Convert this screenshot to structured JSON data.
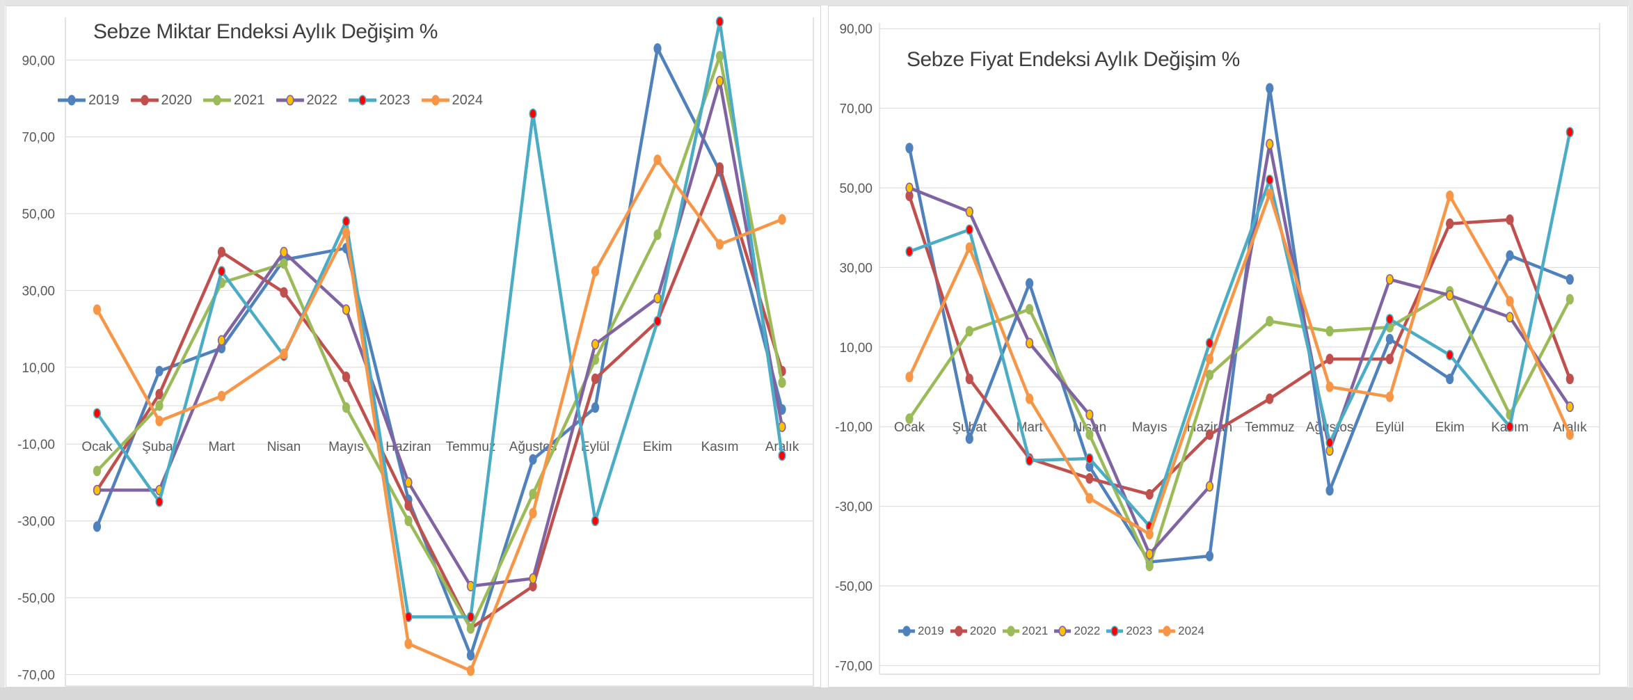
{
  "colors": {
    "gridline": "#d9d9d9",
    "axis_text": "#595959",
    "title_text": "#3f3f3f",
    "panel_border": "#d9d9d9",
    "page_edge": "#d8d8d8"
  },
  "chart_data": [
    {
      "type": "line",
      "title": "Sebze Miktar Endeksi Aylık Değişim %",
      "legend_position": "top-left",
      "grid": true,
      "ylim": [
        -70,
        90
      ],
      "y_tick_values": [
        90,
        70,
        50,
        30,
        10,
        -10,
        -30,
        -50,
        -70
      ],
      "y_tick_labels": [
        "90,00",
        "70,00",
        "50,00",
        "30,00",
        "10,00",
        "-10,00",
        "-30,00",
        "-50,00",
        "-70,00"
      ],
      "categories": [
        "Ocak",
        "Şubat",
        "Mart",
        "Nisan",
        "Mayıs",
        "Haziran",
        "Temmuz",
        "Ağustos",
        "Eylül",
        "Ekim",
        "Kasım",
        "Aralık"
      ],
      "series": [
        {
          "name": "2019",
          "color": "#4F81BD",
          "marker_fill": "#4F81BD",
          "marker_stroke": "#4F81BD",
          "values": [
            -31.5,
            9,
            15,
            38,
            41,
            -24.5,
            -65,
            -14,
            -0.5,
            93,
            61,
            -1
          ]
        },
        {
          "name": "2020",
          "color": "#C0504D",
          "marker_fill": "#C0504D",
          "marker_stroke": "#C0504D",
          "values": [
            -22,
            3,
            40,
            29.5,
            7.5,
            -26,
            -58,
            -47,
            7,
            22,
            62,
            9
          ]
        },
        {
          "name": "2021",
          "color": "#9BBB59",
          "marker_fill": "#9BBB59",
          "marker_stroke": "#9BBB59",
          "values": [
            -17,
            0,
            32,
            37,
            -0.5,
            -30,
            -58,
            -23,
            12,
            44.5,
            91,
            6
          ]
        },
        {
          "name": "2022",
          "color": "#8064A2",
          "marker_fill": "#FFC000",
          "marker_stroke": "#8064A2",
          "values": [
            -22,
            -22,
            17,
            40,
            25,
            -20,
            -47,
            -45,
            16,
            28,
            84.5,
            -5.5
          ]
        },
        {
          "name": "2023",
          "color": "#4BACC6",
          "marker_fill": "#FF0000",
          "marker_stroke": "#4BACC6",
          "values": [
            -2,
            -25,
            35,
            13,
            48,
            -55,
            -55,
            76,
            -30,
            22,
            100,
            -13
          ]
        },
        {
          "name": "2024",
          "color": "#F79646",
          "marker_fill": "#F79646",
          "marker_stroke": "#F79646",
          "values": [
            25,
            -4,
            2.5,
            13.5,
            45,
            -62,
            -69,
            -28,
            35,
            64,
            42,
            48.5
          ]
        }
      ]
    },
    {
      "type": "line",
      "title": "Sebze Fiyat Endeksi Aylık Değişim %",
      "legend_position": "bottom",
      "grid": true,
      "ylim": [
        -70,
        90
      ],
      "y_tick_values": [
        90,
        70,
        50,
        30,
        10,
        -10,
        -30,
        -50,
        -70
      ],
      "y_tick_labels": [
        "90,00",
        "70,00",
        "50,00",
        "30,00",
        "10,00",
        "-10,00",
        "-30,00",
        "-50,00",
        "-70,00"
      ],
      "categories": [
        "Ocak",
        "Şubat",
        "Mart",
        "Nisan",
        "Mayıs",
        "Haziran",
        "Temmuz",
        "Ağustos",
        "Eylül",
        "Ekim",
        "Kasım",
        "Aralık"
      ],
      "series": [
        {
          "name": "2019",
          "color": "#4F81BD",
          "marker_fill": "#4F81BD",
          "marker_stroke": "#4F81BD",
          "values": [
            60,
            -13,
            26,
            -20,
            -44,
            -42.5,
            75,
            -26,
            12,
            2,
            33,
            27
          ]
        },
        {
          "name": "2020",
          "color": "#C0504D",
          "marker_fill": "#C0504D",
          "marker_stroke": "#C0504D",
          "values": [
            48,
            2,
            -18,
            -23,
            -27,
            -12,
            -3,
            7,
            7,
            41,
            42,
            2
          ]
        },
        {
          "name": "2021",
          "color": "#9BBB59",
          "marker_fill": "#9BBB59",
          "marker_stroke": "#9BBB59",
          "values": [
            -8,
            14,
            19.5,
            -12,
            -45,
            3,
            16.5,
            14,
            15,
            24,
            -7,
            22
          ]
        },
        {
          "name": "2022",
          "color": "#8064A2",
          "marker_fill": "#FFC000",
          "marker_stroke": "#8064A2",
          "values": [
            50,
            44,
            11,
            -7,
            -42,
            -25,
            61,
            -16,
            27,
            23,
            17.5,
            -5
          ]
        },
        {
          "name": "2023",
          "color": "#4BACC6",
          "marker_fill": "#FF0000",
          "marker_stroke": "#4BACC6",
          "values": [
            34,
            39.5,
            -18.5,
            -18,
            -35,
            11,
            52,
            -14,
            17,
            8,
            -10,
            64
          ]
        },
        {
          "name": "2024",
          "color": "#F79646",
          "marker_fill": "#F79646",
          "marker_stroke": "#F79646",
          "values": [
            2.5,
            35,
            -3,
            -28,
            -37,
            7,
            48.5,
            0,
            -2.5,
            48,
            21.5,
            -12
          ]
        }
      ]
    }
  ]
}
